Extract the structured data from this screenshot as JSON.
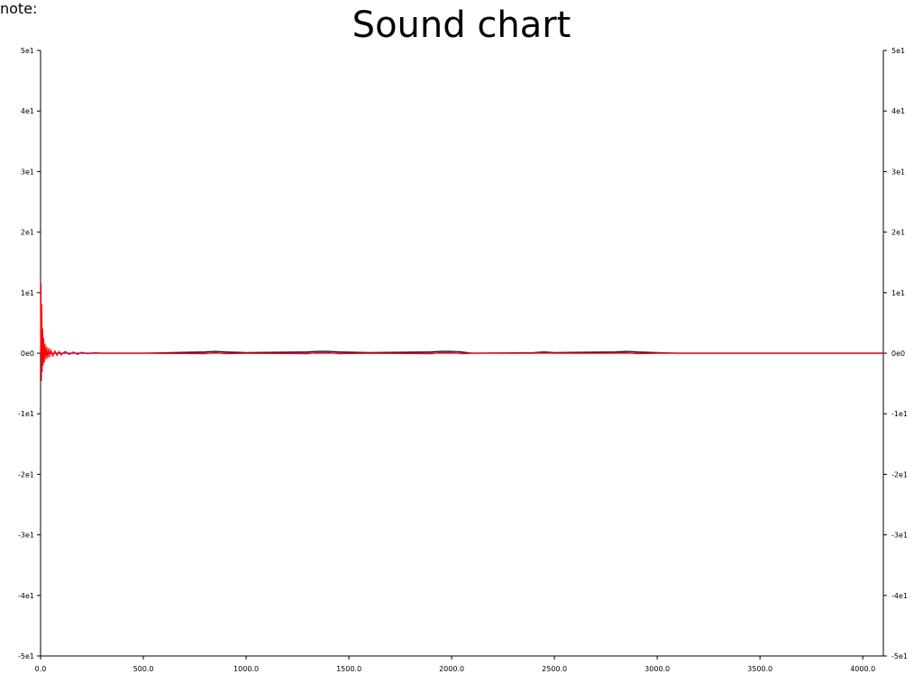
{
  "note_label": "note:",
  "chart_data": {
    "type": "line",
    "title": "Sound chart",
    "xlabel": "",
    "ylabel": "",
    "xlim": [
      0,
      4100
    ],
    "ylim": [
      -50,
      50
    ],
    "x_ticks": [
      {
        "value": 0,
        "label": "0.0"
      },
      {
        "value": 500,
        "label": "500.0"
      },
      {
        "value": 1000,
        "label": "1000.0"
      },
      {
        "value": 1500,
        "label": "1500.0"
      },
      {
        "value": 2000,
        "label": "2000.0"
      },
      {
        "value": 2500,
        "label": "2500.0"
      },
      {
        "value": 3000,
        "label": "3000.0"
      },
      {
        "value": 3500,
        "label": "3500.0"
      },
      {
        "value": 4000,
        "label": "4000.0"
      }
    ],
    "y_ticks": [
      {
        "value": 50,
        "label": "5e1"
      },
      {
        "value": 40,
        "label": "4e1"
      },
      {
        "value": 30,
        "label": "3e1"
      },
      {
        "value": 20,
        "label": "2e1"
      },
      {
        "value": 10,
        "label": "1e1"
      },
      {
        "value": 0,
        "label": "0e0"
      },
      {
        "value": -10,
        "label": "-1e1"
      },
      {
        "value": -20,
        "label": "-2e1"
      },
      {
        "value": -30,
        "label": "-3e1"
      },
      {
        "value": -40,
        "label": "-4e1"
      },
      {
        "value": -50,
        "label": "-5e1"
      }
    ],
    "grid": false,
    "legend": "none",
    "series": [
      {
        "color": "#000000",
        "x": [
          0,
          500,
          800,
          850,
          900,
          1000,
          1300,
          1350,
          1400,
          1450,
          1600,
          1900,
          1950,
          2000,
          2050,
          2100,
          2400,
          2450,
          2500,
          2800,
          2850,
          2900,
          3000,
          3100,
          4100
        ],
        "y": [
          0,
          0,
          0.2,
          0.3,
          0.2,
          0.1,
          0.2,
          0.3,
          0.3,
          0.2,
          0.1,
          0.2,
          0.3,
          0.3,
          0.2,
          0,
          0.1,
          0.2,
          0.1,
          0.2,
          0.3,
          0.2,
          0.1,
          0,
          0
        ]
      },
      {
        "color": "#6b2bd6",
        "x": [
          0,
          500,
          800,
          850,
          900,
          1000,
          1300,
          1350,
          1400,
          1450,
          1600,
          1900,
          1950,
          2000,
          2050,
          2100,
          2400,
          2450,
          2500,
          2800,
          2850,
          2900,
          3000,
          3100,
          4100
        ],
        "y": [
          0,
          0,
          -0.1,
          0.1,
          -0.1,
          0,
          -0.1,
          0.1,
          0.1,
          -0.1,
          0,
          -0.1,
          0.1,
          0.1,
          -0.1,
          0,
          0,
          0.1,
          0,
          0,
          0.1,
          -0.1,
          0,
          0,
          0
        ]
      },
      {
        "color": "#ff0000",
        "x": [
          0,
          2,
          4,
          6,
          8,
          10,
          12,
          15,
          18,
          22,
          26,
          30,
          35,
          40,
          45,
          50,
          60,
          70,
          80,
          90,
          100,
          120,
          140,
          160,
          180,
          200,
          230,
          260,
          300,
          500,
          1000,
          2000,
          3000,
          4100
        ],
        "y": [
          0,
          11.5,
          -4.5,
          8,
          -3,
          4,
          -2,
          2.5,
          -1.5,
          1.5,
          -1,
          1,
          -0.8,
          0.8,
          -0.6,
          0.6,
          -0.5,
          0.4,
          -0.4,
          0.3,
          -0.3,
          0.3,
          -0.2,
          0.2,
          -0.2,
          0.15,
          -0.1,
          0.1,
          0,
          0,
          0,
          0,
          0,
          0
        ]
      }
    ]
  }
}
